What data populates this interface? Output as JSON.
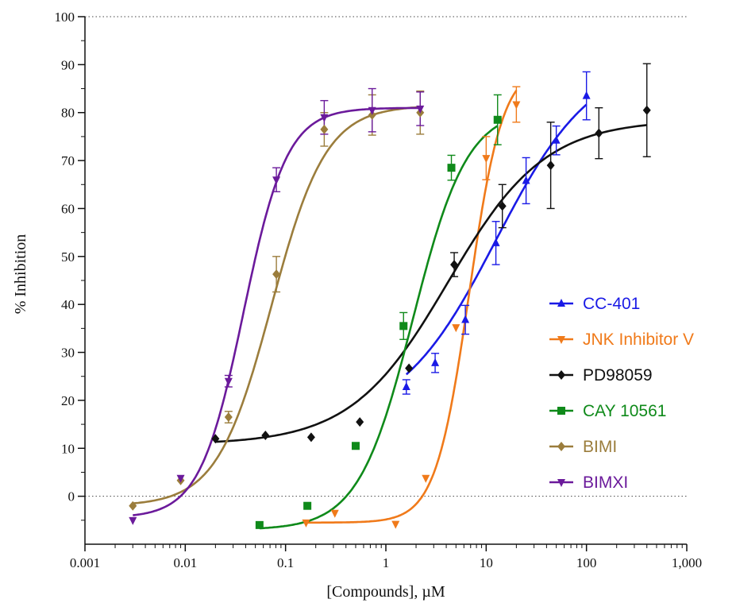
{
  "chart_data": {
    "type": "scatter",
    "xscale": "log",
    "xlim": [
      0.001,
      1000
    ],
    "ylim": [
      -10,
      100
    ],
    "xlabel": "[Compounds], µM",
    "ylabel": "% Inhibition",
    "xticks": [
      0.001,
      0.01,
      0.1,
      1,
      10,
      100,
      1000
    ],
    "xtick_labels": [
      "0.001",
      "0.01",
      "0.1",
      "1",
      "10",
      "100",
      "1,000"
    ],
    "yticks": [
      0,
      10,
      20,
      30,
      40,
      50,
      60,
      70,
      80,
      90,
      100
    ],
    "ytick_labels": [
      "0",
      "10",
      "20",
      "30",
      "40",
      "50",
      "60",
      "70",
      "80",
      "90",
      "100"
    ],
    "reference_lines": [
      0,
      100
    ],
    "legend_position": "right",
    "series": [
      {
        "name": "CC-401",
        "color": "#1a1ae6",
        "marker": "triangle-up",
        "points": [
          {
            "x": 1.6,
            "y": 22.8,
            "err": 1.5
          },
          {
            "x": 3.1,
            "y": 27.8,
            "err": 2
          },
          {
            "x": 6.2,
            "y": 36.8,
            "err": 3
          },
          {
            "x": 12.5,
            "y": 52.8,
            "err": 4.5
          },
          {
            "x": 25,
            "y": 65.8,
            "err": 4.8
          },
          {
            "x": 50,
            "y": 74.2,
            "err": 3
          },
          {
            "x": 100,
            "y": 83.5,
            "err": 5
          }
        ],
        "fit": {
          "bottom": 15,
          "top": 92,
          "logEC50": 1.1,
          "hill": 0.9,
          "xmin": 1.6,
          "xmax": 100
        }
      },
      {
        "name": "JNK Inhibitor V",
        "color": "#f07a1a",
        "marker": "triangle-down",
        "points": [
          {
            "x": 0.16,
            "y": -5.5,
            "err": 0
          },
          {
            "x": 0.31,
            "y": -3.5,
            "err": 0
          },
          {
            "x": 1.25,
            "y": -5.8,
            "err": 0
          },
          {
            "x": 2.5,
            "y": 3.8,
            "err": 0
          },
          {
            "x": 5,
            "y": 35.2,
            "err": 0
          },
          {
            "x": 10,
            "y": 70.5,
            "err": 4.5
          },
          {
            "x": 20,
            "y": 81.7,
            "err": 3.7
          }
        ],
        "fit": {
          "bottom": -5.5,
          "top": 90,
          "logEC50": 0.83,
          "hill": 2.6,
          "xmin": 0.16,
          "xmax": 20
        }
      },
      {
        "name": "PD98059",
        "color": "#111111",
        "marker": "diamond",
        "points": [
          {
            "x": 0.02,
            "y": 12,
            "err": 0
          },
          {
            "x": 0.063,
            "y": 12.7,
            "err": 0
          },
          {
            "x": 0.18,
            "y": 12.3,
            "err": 0
          },
          {
            "x": 0.55,
            "y": 15.5,
            "err": 0
          },
          {
            "x": 1.7,
            "y": 26.7,
            "err": 0
          },
          {
            "x": 4.8,
            "y": 48.3,
            "err": 2.5
          },
          {
            "x": 14.5,
            "y": 60.5,
            "err": 4.5
          },
          {
            "x": 44,
            "y": 69,
            "err": 9
          },
          {
            "x": 133,
            "y": 75.7,
            "err": 5.3
          },
          {
            "x": 400,
            "y": 80.5,
            "err": 9.7
          }
        ],
        "fit": {
          "bottom": 10.8,
          "top": 78.5,
          "logEC50": 0.62,
          "hill": 0.9,
          "xmin": 0.02,
          "xmax": 400
        }
      },
      {
        "name": "CAY 10561",
        "color": "#0f8a1a",
        "marker": "square",
        "points": [
          {
            "x": 0.055,
            "y": -6,
            "err": 0
          },
          {
            "x": 0.165,
            "y": -2,
            "err": 0
          },
          {
            "x": 0.5,
            "y": 10.5,
            "err": 0
          },
          {
            "x": 1.5,
            "y": 35.5,
            "err": 2.8
          },
          {
            "x": 4.5,
            "y": 68.5,
            "err": 2.6
          },
          {
            "x": 13,
            "y": 78.5,
            "err": 5.2
          }
        ],
        "fit": {
          "bottom": -7,
          "top": 81,
          "logEC50": 0.27,
          "hill": 1.6,
          "xmin": 0.055,
          "xmax": 13
        }
      },
      {
        "name": "BIMI",
        "color": "#9b7d3c",
        "marker": "diamond",
        "points": [
          {
            "x": 0.003,
            "y": -2,
            "err": 0
          },
          {
            "x": 0.009,
            "y": 3.3,
            "err": 0
          },
          {
            "x": 0.027,
            "y": 16.5,
            "err": 1.2
          },
          {
            "x": 0.081,
            "y": 46.3,
            "err": 3.7
          },
          {
            "x": 0.243,
            "y": 76.5,
            "err": 3.5
          },
          {
            "x": 0.73,
            "y": 79.5,
            "err": 4.2
          },
          {
            "x": 2.2,
            "y": 80,
            "err": 4.5
          }
        ],
        "fit": {
          "bottom": -2,
          "top": 81.5,
          "logEC50": -1.14,
          "hill": 1.6,
          "xmin": 0.003,
          "xmax": 2.2
        }
      },
      {
        "name": "BIMXI",
        "color": "#6b1a9b",
        "marker": "triangle-down",
        "points": [
          {
            "x": 0.003,
            "y": -5,
            "err": 0
          },
          {
            "x": 0.009,
            "y": 3.8,
            "err": 0
          },
          {
            "x": 0.027,
            "y": 24,
            "err": 1.2
          },
          {
            "x": 0.081,
            "y": 66,
            "err": 2.5
          },
          {
            "x": 0.243,
            "y": 79,
            "err": 3.5
          },
          {
            "x": 0.73,
            "y": 80.5,
            "err": 4.5
          },
          {
            "x": 2.2,
            "y": 80.8,
            "err": 3.5
          }
        ],
        "fit": {
          "bottom": -4.5,
          "top": 81,
          "logEC50": -1.42,
          "hill": 2.0,
          "xmin": 0.003,
          "xmax": 2.2
        }
      }
    ]
  }
}
